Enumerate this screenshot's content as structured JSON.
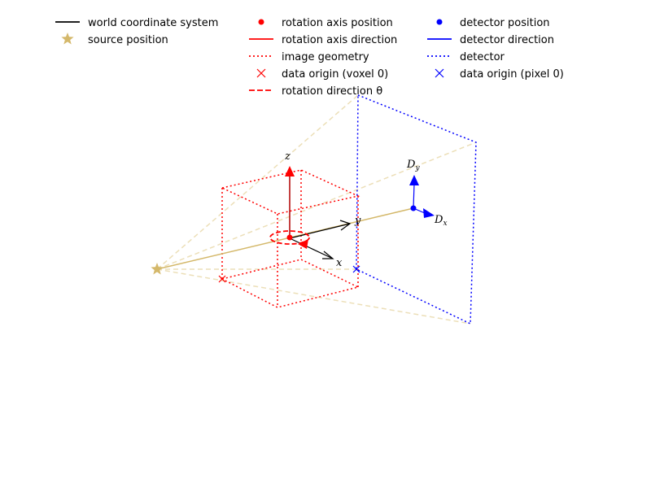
{
  "colors": {
    "world": "#000000",
    "source": "#d4b86a",
    "beam": "#d4b86a",
    "rotation": "#ff0000",
    "detector": "#0000ff"
  },
  "legend": {
    "col1": [
      {
        "marker": "line-solid",
        "color": "#000000",
        "label": "world coordinate system"
      },
      {
        "marker": "star",
        "color": "#d4b86a",
        "label": "source position"
      }
    ],
    "col2": [
      {
        "marker": "dot",
        "color": "#ff0000",
        "label": "rotation axis position"
      },
      {
        "marker": "line-solid",
        "color": "#ff0000",
        "label": "rotation axis direction"
      },
      {
        "marker": "line-dotted",
        "color": "#ff0000",
        "label": "image geometry"
      },
      {
        "marker": "cross",
        "color": "#ff0000",
        "label": "data origin (voxel 0)"
      },
      {
        "marker": "line-dashed",
        "color": "#ff0000",
        "label": "rotation direction θ"
      }
    ],
    "col3": [
      {
        "marker": "dot",
        "color": "#0000ff",
        "label": "detector position"
      },
      {
        "marker": "line-solid",
        "color": "#0000ff",
        "label": "detector direction"
      },
      {
        "marker": "line-dotted",
        "color": "#0000ff",
        "label": "detector"
      },
      {
        "marker": "cross",
        "color": "#0000ff",
        "label": "data origin (pixel 0)"
      }
    ]
  },
  "axis_labels": {
    "x": "x",
    "y": "y",
    "z": "z",
    "dx_main": "D",
    "dx_sub": "x",
    "dy_main": "D",
    "dy_sub": "y"
  }
}
